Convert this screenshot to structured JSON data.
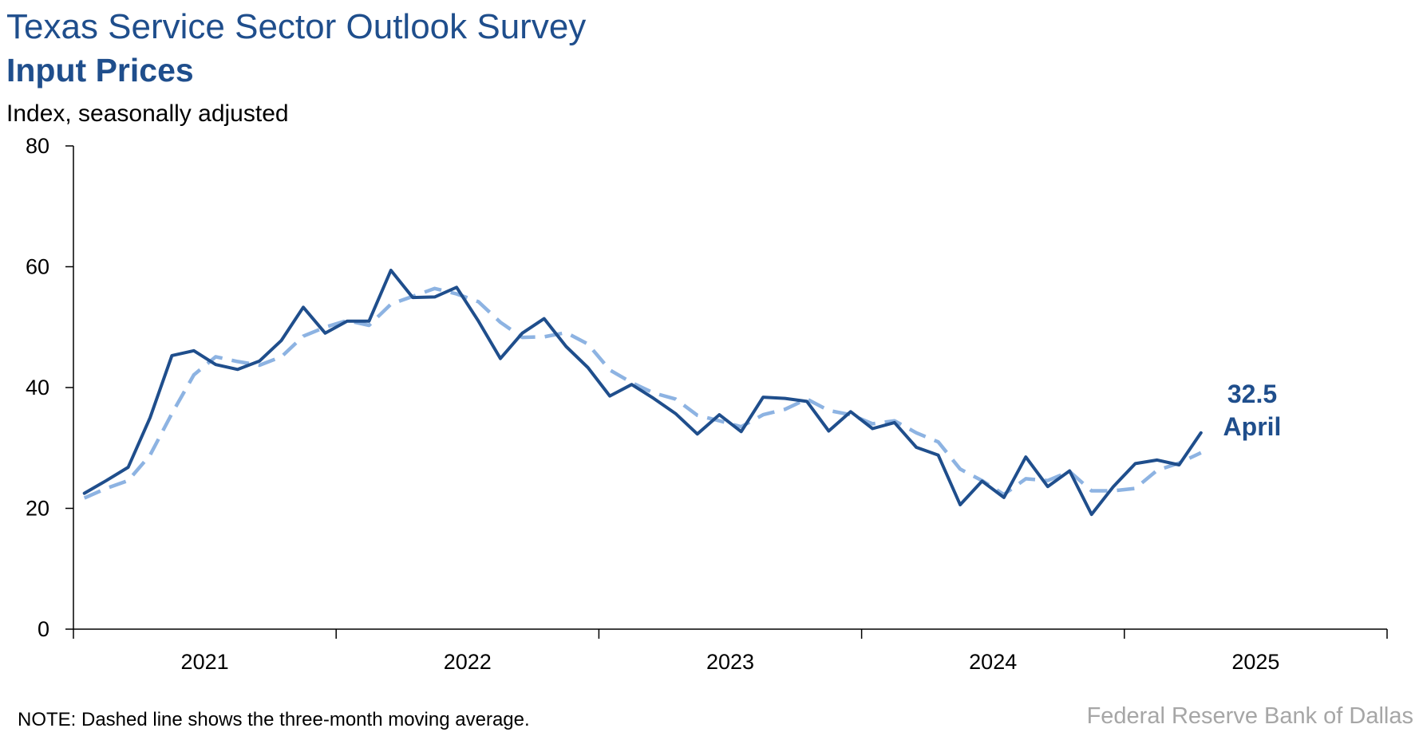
{
  "chart_data": {
    "type": "line",
    "title": "Texas Service Sector Outlook Survey",
    "subtitle": "Input Prices",
    "ylabel": "Index, seasonally adjusted",
    "ylim": [
      0,
      80
    ],
    "y_ticks": [
      0,
      20,
      40,
      60,
      80
    ],
    "x_start": "2021-01",
    "x_categories": [
      "2021",
      "2022",
      "2023",
      "2024",
      "2025"
    ],
    "grid": false,
    "series": [
      {
        "line_style": "solid",
        "color": "#1f4e8c",
        "x": [
          "2021-01",
          "2021-02",
          "2021-03",
          "2021-04",
          "2021-05",
          "2021-06",
          "2021-07",
          "2021-08",
          "2021-09",
          "2021-10",
          "2021-11",
          "2021-12",
          "2022-01",
          "2022-02",
          "2022-03",
          "2022-04",
          "2022-05",
          "2022-06",
          "2022-07",
          "2022-08",
          "2022-09",
          "2022-10",
          "2022-11",
          "2022-12",
          "2023-01",
          "2023-02",
          "2023-03",
          "2023-04",
          "2023-05",
          "2023-06",
          "2023-07",
          "2023-08",
          "2023-09",
          "2023-10",
          "2023-11",
          "2023-12",
          "2024-01",
          "2024-02",
          "2024-03",
          "2024-04",
          "2024-05",
          "2024-06",
          "2024-07",
          "2024-08",
          "2024-09",
          "2024-10",
          "2024-11",
          "2024-12",
          "2025-01",
          "2025-02",
          "2025-03",
          "2025-04"
        ],
        "values": [
          22.5,
          24.6,
          26.8,
          35.0,
          45.3,
          46.1,
          43.8,
          43.0,
          44.4,
          47.8,
          53.3,
          49.0,
          51.0,
          51.0,
          59.4,
          54.9,
          55.0,
          56.6,
          51.0,
          44.8,
          49.0,
          51.4,
          46.8,
          43.3,
          38.6,
          40.5,
          38.2,
          35.7,
          32.3,
          35.5,
          32.7,
          38.4,
          38.2,
          37.7,
          32.8,
          36.0,
          33.2,
          34.2,
          30.1,
          28.8,
          20.6,
          24.5,
          21.8,
          28.5,
          23.6,
          26.2,
          19.0,
          23.6,
          27.4,
          28.0,
          27.2,
          32.5
        ]
      },
      {
        "line_style": "dashed",
        "color": "#8db3e2",
        "x": [
          "2021-01",
          "2021-02",
          "2021-03",
          "2021-04",
          "2021-05",
          "2021-06",
          "2021-07",
          "2021-08",
          "2021-09",
          "2021-10",
          "2021-11",
          "2021-12",
          "2022-01",
          "2022-02",
          "2022-03",
          "2022-04",
          "2022-05",
          "2022-06",
          "2022-07",
          "2022-08",
          "2022-09",
          "2022-10",
          "2022-11",
          "2022-12",
          "2023-01",
          "2023-02",
          "2023-03",
          "2023-04",
          "2023-05",
          "2023-06",
          "2023-07",
          "2023-08",
          "2023-09",
          "2023-10",
          "2023-11",
          "2023-12",
          "2024-01",
          "2024-02",
          "2024-03",
          "2024-04",
          "2024-05",
          "2024-06",
          "2024-07",
          "2024-08",
          "2024-09",
          "2024-10",
          "2024-11",
          "2024-12",
          "2025-01",
          "2025-02",
          "2025-03",
          "2025-04"
        ],
        "values": [
          21.7,
          23.3,
          24.6,
          28.8,
          35.7,
          42.1,
          45.1,
          44.3,
          43.7,
          45.1,
          48.5,
          50.0,
          51.1,
          50.3,
          53.8,
          55.1,
          56.4,
          55.5,
          54.2,
          50.8,
          48.3,
          48.4,
          49.1,
          47.2,
          42.9,
          40.8,
          39.1,
          38.1,
          35.4,
          34.5,
          33.5,
          35.5,
          36.4,
          38.1,
          36.2,
          35.5,
          34.0,
          34.5,
          32.5,
          31.0,
          26.5,
          24.6,
          22.3,
          24.9,
          24.6,
          26.1,
          22.9,
          22.9,
          23.3,
          26.3,
          27.5,
          29.2
        ]
      }
    ],
    "annotation": {
      "value": "32.5",
      "label": "April"
    },
    "note": "NOTE: Dashed line shows the three-month moving average.",
    "source": "Federal Reserve Bank of Dallas"
  }
}
